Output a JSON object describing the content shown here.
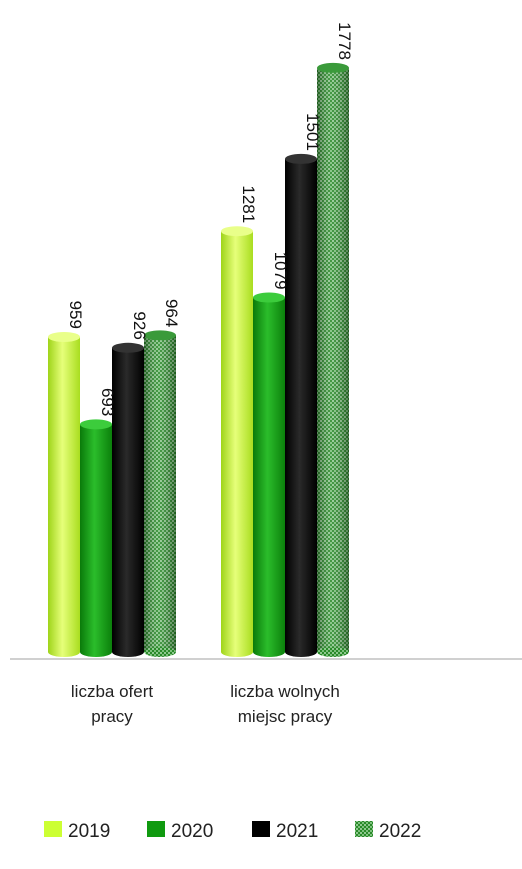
{
  "chart_data": {
    "type": "bar",
    "categories": [
      [
        "liczba ofert",
        "pracy"
      ],
      [
        "liczba wolnych",
        "miejsc pracy"
      ]
    ],
    "series": [
      {
        "name": "2019",
        "values": [
          959,
          1281
        ],
        "color": "#ccff33",
        "pattern": "solid"
      },
      {
        "name": "2020",
        "values": [
          693,
          1079
        ],
        "color": "#109a10",
        "pattern": "solid"
      },
      {
        "name": "2021",
        "values": [
          926,
          1501
        ],
        "color": "#000000",
        "pattern": "solid"
      },
      {
        "name": "2022",
        "values": [
          964,
          1778
        ],
        "color": "#1f7a1f",
        "pattern": "dotted"
      }
    ],
    "ylim": [
      0,
      1850
    ],
    "grid": false,
    "legend_position": "bottom",
    "data_label_orientation": "rotated-90"
  }
}
